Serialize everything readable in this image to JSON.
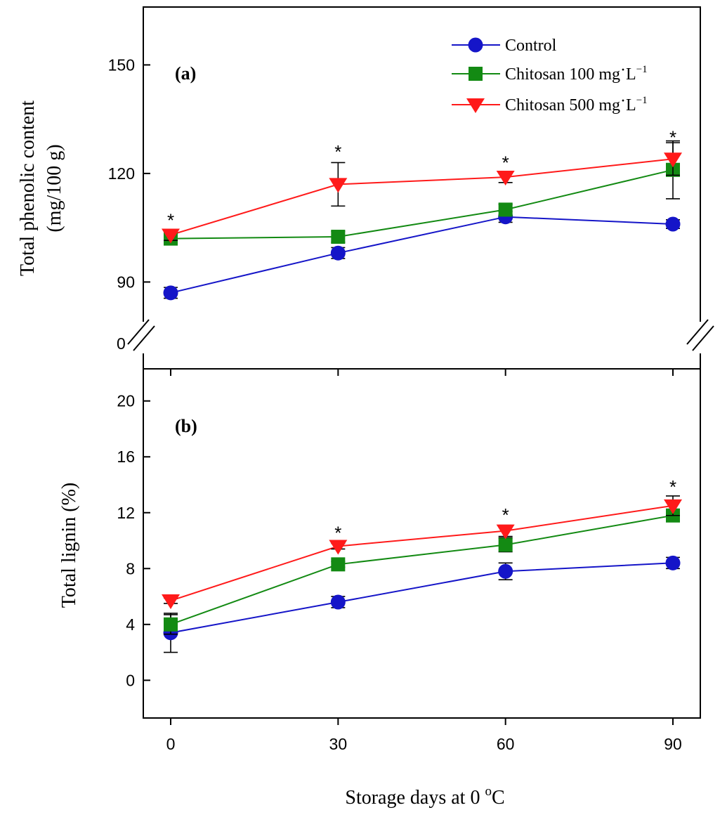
{
  "colors": {
    "control": "#1515c8",
    "chitosan100": "#138a13",
    "chitosan500": "#ff1a1a"
  },
  "legend": {
    "control": "Control",
    "chitosan100": {
      "base": "Chitosan 100 mg",
      "dot": "·",
      "unit": "L",
      "exp": "−1"
    },
    "chitosan500": {
      "base": "Chitosan 500 mg",
      "dot": "·",
      "unit": "L",
      "exp": "−1"
    }
  },
  "xaxis": {
    "title_main": "Storage days at 0 ",
    "title_sup": "o",
    "title_unit": "C"
  },
  "chart_data": [
    {
      "type": "line",
      "panel_label": "(a)",
      "ylabel_line1": "Total phenolic content",
      "ylabel_line2": "(mg/100 g)",
      "x": [
        0,
        30,
        60,
        90
      ],
      "xticks": [
        "0",
        "30",
        "60",
        "90"
      ],
      "ylim": [
        66,
        166
      ],
      "yticks": [
        90,
        120,
        150
      ],
      "ytick_labels": [
        "90",
        "120",
        "150"
      ],
      "axis_break": true,
      "break_label": "0",
      "series": [
        {
          "key": "control",
          "name": "Control",
          "values": [
            87,
            98,
            108,
            106
          ],
          "errors": [
            1.5,
            1.5,
            1.5,
            1.2
          ],
          "marker": "circle"
        },
        {
          "key": "chitosan100",
          "name": "Chitosan 100 mg·L−1",
          "values": [
            102,
            102.5,
            110,
            121
          ],
          "errors": [
            1.5,
            1.5,
            1.5,
            8
          ],
          "marker": "square"
        },
        {
          "key": "chitosan500",
          "name": "Chitosan 500 mg·L−1",
          "values": [
            103,
            117,
            119,
            124
          ],
          "errors": [
            1.5,
            6,
            1.5,
            4.5
          ],
          "marker": "triangle-down"
        }
      ],
      "annotations": [
        {
          "x": 0,
          "text": "*",
          "y": 108
        },
        {
          "x": 30,
          "text": "*",
          "y": 127
        },
        {
          "x": 60,
          "text": "*",
          "y": 124
        },
        {
          "x": 90,
          "text": "*",
          "y": 131
        }
      ]
    },
    {
      "type": "line",
      "panel_label": "(b)",
      "ylabel": "Total lignin (%)",
      "x": [
        0,
        30,
        60,
        90
      ],
      "xticks": [
        "0",
        "30",
        "60",
        "90"
      ],
      "ylim": [
        -2.7,
        22.3
      ],
      "yticks": [
        0,
        4,
        8,
        12,
        16,
        20
      ],
      "ytick_labels": [
        "0",
        "4",
        "8",
        "12",
        "16",
        "20"
      ],
      "series": [
        {
          "key": "control",
          "name": "Control",
          "values": [
            3.4,
            5.6,
            7.8,
            8.4
          ],
          "errors": [
            1.4,
            0.4,
            0.6,
            0.4
          ],
          "marker": "circle"
        },
        {
          "key": "chitosan100",
          "name": "Chitosan 100 mg·L−1",
          "values": [
            4.0,
            8.3,
            9.7,
            11.8
          ],
          "errors": [
            0.7,
            0.2,
            0.5,
            0.2
          ],
          "marker": "square"
        },
        {
          "key": "chitosan500",
          "name": "Chitosan 500 mg·L−1",
          "values": [
            5.7,
            9.6,
            10.7,
            12.5
          ],
          "errors": [
            0.2,
            0.2,
            0.4,
            0.7
          ],
          "marker": "triangle-down"
        }
      ],
      "annotations": [
        {
          "x": 30,
          "text": "*",
          "y": 10.8
        },
        {
          "x": 60,
          "text": "*",
          "y": 12.1
        },
        {
          "x": 90,
          "text": "*",
          "y": 14.1
        }
      ]
    }
  ]
}
